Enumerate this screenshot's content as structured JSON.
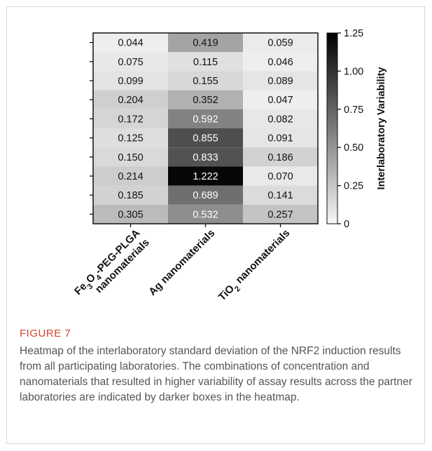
{
  "chart_data": {
    "type": "heatmap",
    "x_categories": [
      {
        "parts": [
          {
            "t": "Fe"
          },
          {
            "t": "3",
            "sub": true
          },
          {
            "t": "O"
          },
          {
            "t": "4",
            "sub": true
          },
          {
            "t": "-PEG-PLGA"
          }
        ],
        "line2": "nanomaterials"
      },
      {
        "parts": [
          {
            "t": "Ag nanomaterials"
          }
        ],
        "line2": ""
      },
      {
        "parts": [
          {
            "t": "TiO"
          },
          {
            "t": "2",
            "sub": true
          },
          {
            "t": " nanomaterials"
          }
        ],
        "line2": ""
      }
    ],
    "rows": 10,
    "values": [
      [
        0.044,
        0.419,
        0.059
      ],
      [
        0.075,
        0.115,
        0.046
      ],
      [
        0.099,
        0.155,
        0.089
      ],
      [
        0.204,
        0.352,
        0.047
      ],
      [
        0.172,
        0.592,
        0.082
      ],
      [
        0.125,
        0.855,
        0.091
      ],
      [
        0.15,
        0.833,
        0.186
      ],
      [
        0.214,
        1.222,
        0.07
      ],
      [
        0.185,
        0.689,
        0.141
      ],
      [
        0.305,
        0.532,
        0.257
      ]
    ],
    "colorbar": {
      "label": "Interlaboratory Variability",
      "min": 0,
      "max": 1.25,
      "ticks": [
        0,
        0.25,
        0.5,
        0.75,
        1.0,
        1.25
      ],
      "tick_labels": [
        "0",
        "0.25",
        "0.50",
        "0.75",
        "1.00",
        "1.25"
      ],
      "low_color": "#f7f7f7",
      "high_color": "#000000"
    },
    "grid": false
  },
  "caption": {
    "label": "FIGURE 7",
    "text": "Heatmap of the interlaboratory standard deviation of the NRF2 induction results from all participating laboratories. The combinations of concentration and nanomaterials that resulted in higher variability of assay results across the partner laboratories are indicated by darker boxes in the heatmap."
  }
}
